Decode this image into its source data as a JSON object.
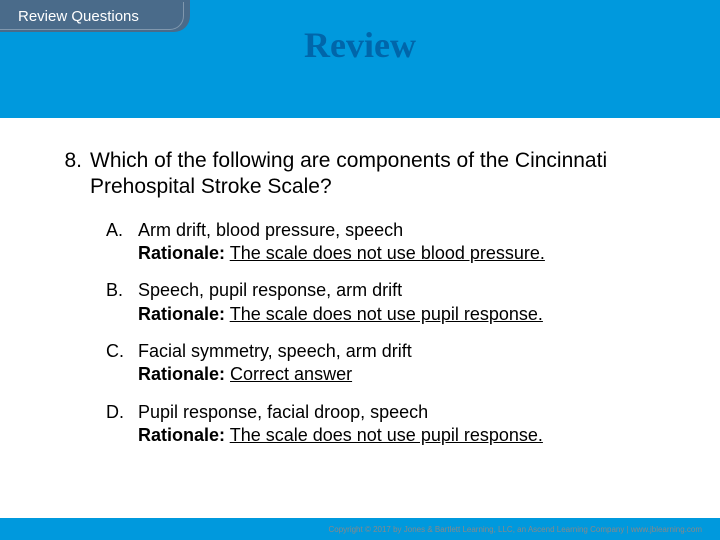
{
  "colors": {
    "slide_bg": "#0099dd",
    "tab_bg": "#4a6b8a",
    "title_color": "#0066aa",
    "content_bg": "#ffffff",
    "text_color": "#000000",
    "footer_color": "#888888"
  },
  "tab": {
    "label": "Review Questions",
    "fontsize": 15
  },
  "title": {
    "text": "Review",
    "fontsize": 36,
    "font_family": "serif",
    "weight": "bold"
  },
  "question": {
    "number": "8.",
    "text": "Which of the following are components of the Cincinnati Prehospital Stroke Scale?",
    "fontsize": 21
  },
  "options": [
    {
      "letter": "A.",
      "answer": "Arm drift, blood pressure, speech",
      "rationale_label": "Rationale:",
      "rationale": "The scale does not use blood pressure."
    },
    {
      "letter": "B.",
      "answer": "Speech, pupil response, arm drift",
      "rationale_label": "Rationale:",
      "rationale": "The scale does not use pupil response."
    },
    {
      "letter": "C.",
      "answer": "Facial symmetry, speech, arm drift",
      "rationale_label": "Rationale:",
      "rationale": "Correct answer"
    },
    {
      "letter": "D.",
      "answer": "Pupil response, facial droop, speech",
      "rationale_label": "Rationale:",
      "rationale": "The scale does not use pupil response."
    }
  ],
  "option_fontsize": 18,
  "footer": {
    "text": "Copyright © 2017 by Jones & Bartlett Learning, LLC, an Ascend Learning Company | www.jblearning.com"
  }
}
